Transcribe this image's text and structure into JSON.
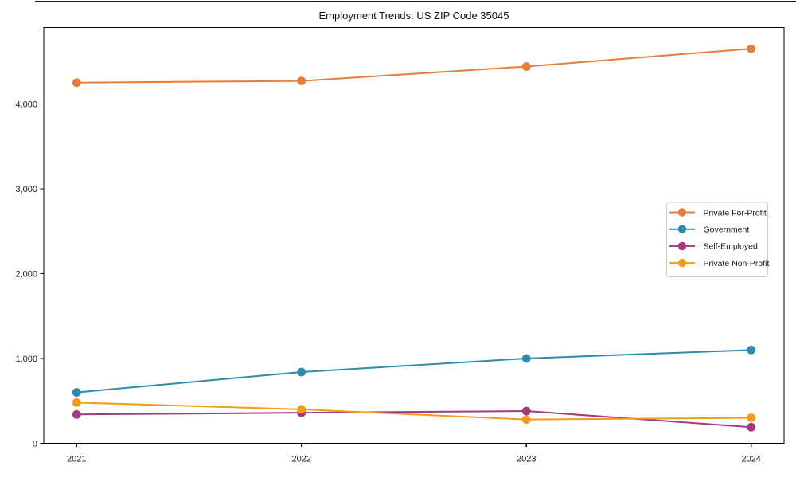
{
  "figure": {
    "title": "Employment Trends: US ZIP Code 35045"
  },
  "chart_data": {
    "type": "line",
    "title": "Employment Trends: US ZIP Code 35045",
    "categories": [
      "2021",
      "2022",
      "2023",
      "2024"
    ],
    "series": [
      {
        "name": "Private For-Profit",
        "color": "#e87d3b",
        "values": [
          4250,
          4270,
          4440,
          4650
        ]
      },
      {
        "name": "Government",
        "color": "#2e8bab",
        "values": [
          600,
          840,
          1000,
          1100
        ]
      },
      {
        "name": "Self-Employed",
        "color": "#a23a80",
        "values": [
          340,
          360,
          380,
          190
        ]
      },
      {
        "name": "Private Non-Profit",
        "color": "#f29b1d",
        "values": [
          480,
          400,
          280,
          300
        ]
      }
    ],
    "xlabel": "",
    "ylabel": "",
    "ylim": [
      0,
      4900
    ],
    "yticks": [
      0,
      1000,
      2000,
      3000,
      4000
    ],
    "ytick_labels": [
      "0",
      "1,000",
      "2,000",
      "3,000",
      "4,000"
    ],
    "grid": false,
    "marker": "circle",
    "legend": {
      "position": "middle-right",
      "entries": [
        "Private For-Profit",
        "Government",
        "Self-Employed",
        "Private Non-Profit"
      ]
    },
    "colors": {
      "spine": "#000000",
      "background": "#ffffff",
      "legend_border": "#cccccc"
    }
  }
}
